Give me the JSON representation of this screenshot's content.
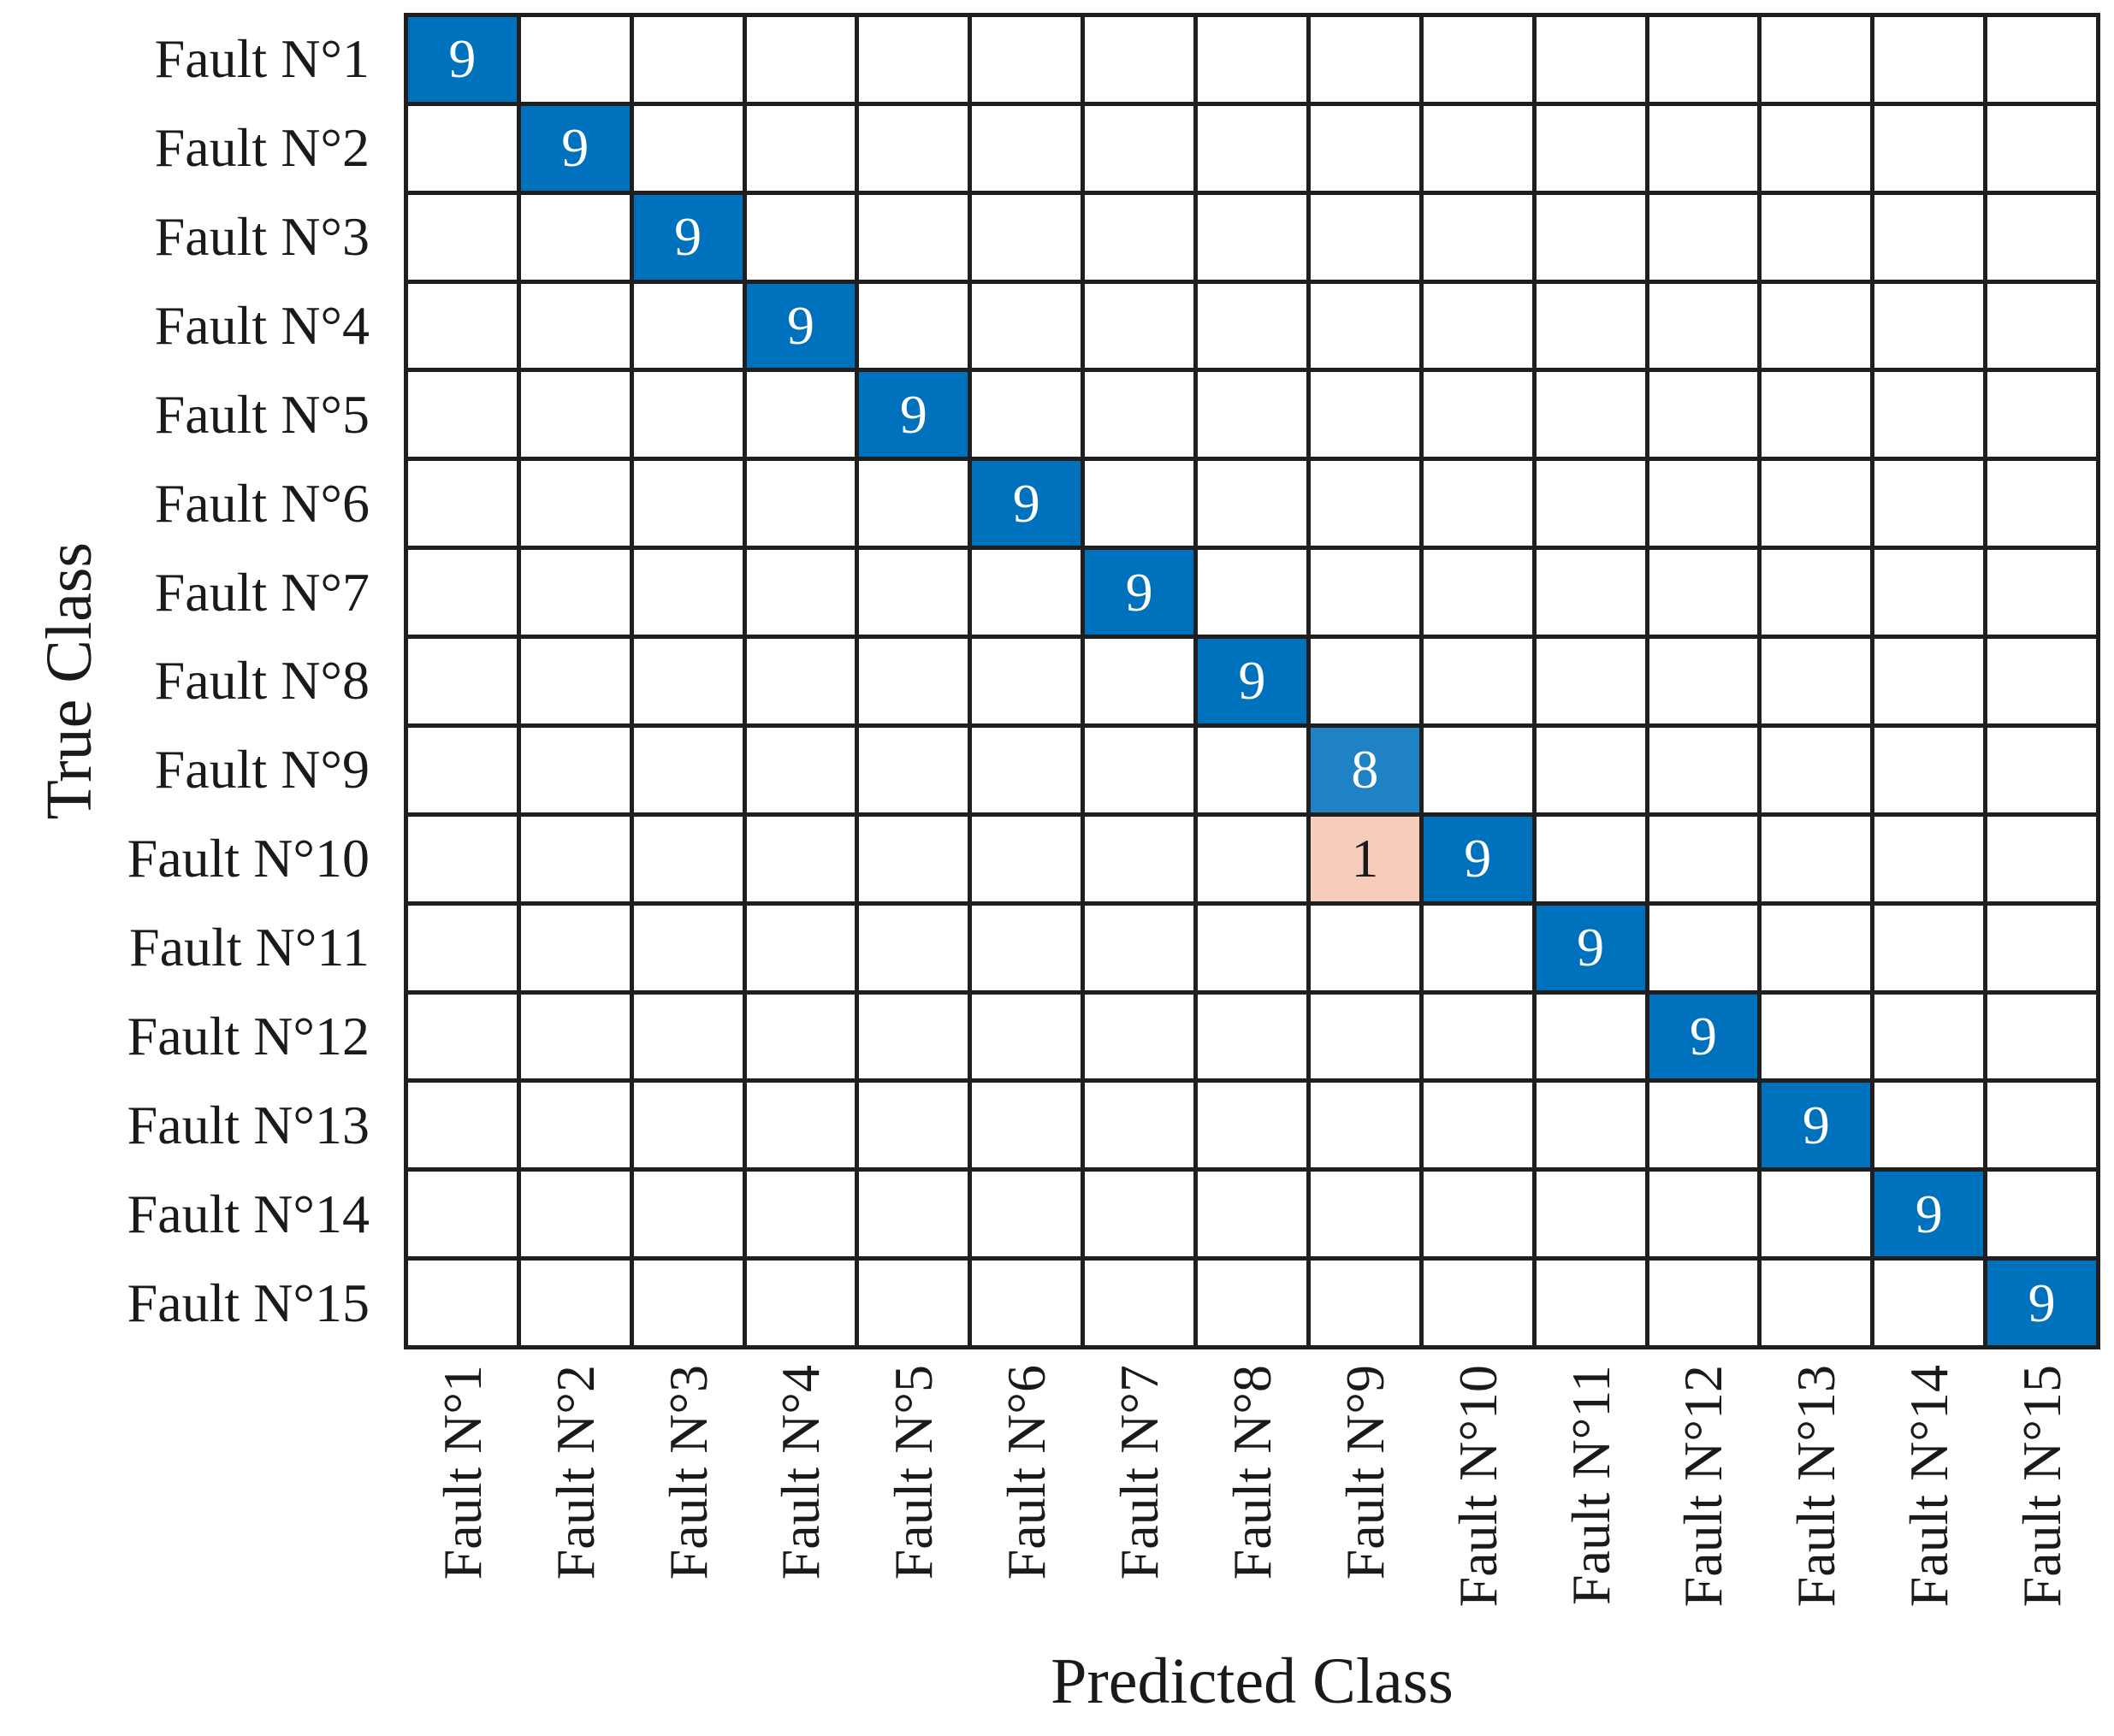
{
  "figure": {
    "background": "#ffffff",
    "grid_line_color": "#1f1f1f",
    "text_color": "#1a1a1a"
  },
  "chart_data": {
    "type": "heatmap",
    "subtype": "confusion-matrix",
    "title": "",
    "xlabel": "Predicted Class",
    "ylabel": "True Class",
    "x_categories": [
      "Fault N°1",
      "Fault N°2",
      "Fault N°3",
      "Fault N°4",
      "Fault N°5",
      "Fault N°6",
      "Fault N°7",
      "Fault N°8",
      "Fault N°9",
      "Fault N°10",
      "Fault N°11",
      "Fault N°12",
      "Fault N°13",
      "Fault N°14",
      "Fault N°15"
    ],
    "y_categories": [
      "Fault N°1",
      "Fault N°2",
      "Fault N°3",
      "Fault N°4",
      "Fault N°5",
      "Fault N°6",
      "Fault N°7",
      "Fault N°8",
      "Fault N°9",
      "Fault N°10",
      "Fault N°11",
      "Fault N°12",
      "Fault N°13",
      "Fault N°14",
      "Fault N°15"
    ],
    "matrix": [
      [
        9,
        0,
        0,
        0,
        0,
        0,
        0,
        0,
        0,
        0,
        0,
        0,
        0,
        0,
        0
      ],
      [
        0,
        9,
        0,
        0,
        0,
        0,
        0,
        0,
        0,
        0,
        0,
        0,
        0,
        0,
        0
      ],
      [
        0,
        0,
        9,
        0,
        0,
        0,
        0,
        0,
        0,
        0,
        0,
        0,
        0,
        0,
        0
      ],
      [
        0,
        0,
        0,
        9,
        0,
        0,
        0,
        0,
        0,
        0,
        0,
        0,
        0,
        0,
        0
      ],
      [
        0,
        0,
        0,
        0,
        9,
        0,
        0,
        0,
        0,
        0,
        0,
        0,
        0,
        0,
        0
      ],
      [
        0,
        0,
        0,
        0,
        0,
        9,
        0,
        0,
        0,
        0,
        0,
        0,
        0,
        0,
        0
      ],
      [
        0,
        0,
        0,
        0,
        0,
        0,
        9,
        0,
        0,
        0,
        0,
        0,
        0,
        0,
        0
      ],
      [
        0,
        0,
        0,
        0,
        0,
        0,
        0,
        9,
        0,
        0,
        0,
        0,
        0,
        0,
        0
      ],
      [
        0,
        0,
        0,
        0,
        0,
        0,
        0,
        0,
        8,
        0,
        0,
        0,
        0,
        0,
        0
      ],
      [
        0,
        0,
        0,
        0,
        0,
        0,
        0,
        0,
        1,
        9,
        0,
        0,
        0,
        0,
        0
      ],
      [
        0,
        0,
        0,
        0,
        0,
        0,
        0,
        0,
        0,
        0,
        9,
        0,
        0,
        0,
        0
      ],
      [
        0,
        0,
        0,
        0,
        0,
        0,
        0,
        0,
        0,
        0,
        0,
        9,
        0,
        0,
        0
      ],
      [
        0,
        0,
        0,
        0,
        0,
        0,
        0,
        0,
        0,
        0,
        0,
        0,
        9,
        0,
        0
      ],
      [
        0,
        0,
        0,
        0,
        0,
        0,
        0,
        0,
        0,
        0,
        0,
        0,
        0,
        9,
        0
      ],
      [
        0,
        0,
        0,
        0,
        0,
        0,
        0,
        0,
        0,
        0,
        0,
        0,
        0,
        0,
        9
      ]
    ],
    "cell_styles": {
      "9": {
        "bg": "#0071bc",
        "text": "#ffffff"
      },
      "8": {
        "bg": "#1e82c4",
        "text": "#ffffff"
      },
      "1": {
        "bg": "#f5cdba",
        "text": "#1a1a1a"
      },
      "0": {
        "bg": "#ffffff",
        "text": "#1a1a1a"
      }
    },
    "legend": null,
    "grid": "on",
    "empty_cells_blank": true
  }
}
